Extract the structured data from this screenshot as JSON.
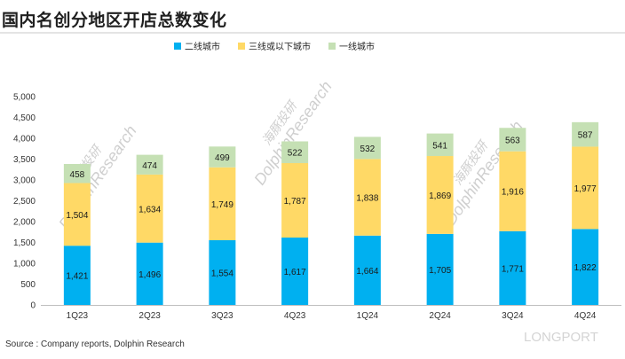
{
  "chart_data": {
    "type": "bar",
    "stacked": true,
    "title": "国内名创分地区开店总数变化",
    "categories": [
      "1Q23",
      "2Q23",
      "3Q23",
      "4Q23",
      "1Q24",
      "2Q24",
      "3Q24",
      "4Q24"
    ],
    "series": [
      {
        "name": "二线城市",
        "color": "#00b0f0",
        "values": [
          1421,
          1496,
          1554,
          1617,
          1664,
          1705,
          1771,
          1822
        ]
      },
      {
        "name": "三线或以下城市",
        "color": "#ffd966",
        "values": [
          1504,
          1634,
          1749,
          1787,
          1838,
          1869,
          1916,
          1977
        ]
      },
      {
        "name": "一线城市",
        "color": "#c5e0b4",
        "values": [
          458,
          474,
          499,
          522,
          532,
          541,
          563,
          587
        ]
      }
    ],
    "ylim": [
      0,
      5000
    ],
    "yticks": [
      0,
      500,
      1000,
      1500,
      2000,
      2500,
      3000,
      3500,
      4000,
      4500,
      5000
    ],
    "ytick_labels": [
      "0",
      "500",
      "1,000",
      "1,500",
      "2,000",
      "2,500",
      "3,000",
      "3,500",
      "4,000",
      "4,500",
      "5,000"
    ],
    "grid": false,
    "legend_position": "top"
  },
  "source": "Source : Company reports, Dolphin Research",
  "watermarks": [
    "海豚投研",
    "DolphinResearch",
    "LONGPORT"
  ]
}
